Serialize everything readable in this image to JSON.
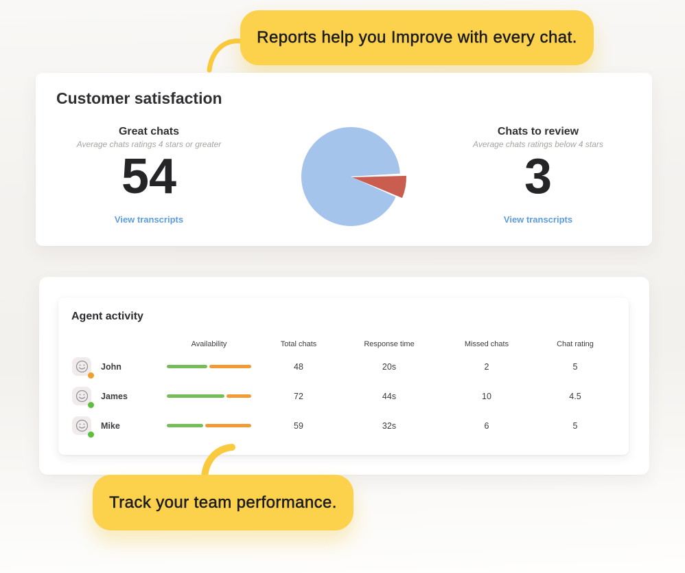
{
  "callouts": {
    "top": {
      "text": "Reports help you Improve with every chat."
    },
    "bottom": {
      "text": "Track your team performance."
    }
  },
  "customer_satisfaction": {
    "title": "Customer satisfaction",
    "left_stat": {
      "label": "Great chats",
      "subtitle": "Average chats ratings 4 stars or greater",
      "value": "54",
      "link": "View transcripts"
    },
    "right_stat": {
      "label": "Chats to review",
      "subtitle": "Average chats ratings below 4 stars",
      "value": "3",
      "link": "View transcripts"
    }
  },
  "chart_data": {
    "type": "pie",
    "title": "Customer satisfaction",
    "slices": [
      {
        "label": "Great chats",
        "value": 54,
        "color": "#a5c4ec"
      },
      {
        "label": "Chats to review",
        "value": 3,
        "color": "#c95d50",
        "exploded": true
      }
    ]
  },
  "agent_activity": {
    "title": "Agent activity",
    "columns": [
      "Availability",
      "Total chats",
      "Response time",
      "Missed chats",
      "Chat rating"
    ],
    "bar_colors": {
      "green": "#76bc58",
      "orange": "#f29a33"
    },
    "rows": [
      {
        "name": "John",
        "status": "away",
        "status_color": "#f09e2f",
        "availability_green_pct": 48,
        "availability_orange_pct": 52,
        "total_chats": "48",
        "response_time": "20s",
        "missed_chats": "2",
        "chat_rating": "5"
      },
      {
        "name": "James",
        "status": "online",
        "status_color": "#5dbe3f",
        "availability_green_pct": 68,
        "availability_orange_pct": 32,
        "total_chats": "72",
        "response_time": "44s",
        "missed_chats": "10",
        "chat_rating": "4.5"
      },
      {
        "name": "Mike",
        "status": "online",
        "status_color": "#5dbe3f",
        "availability_green_pct": 43,
        "availability_orange_pct": 57,
        "total_chats": "59",
        "response_time": "32s",
        "missed_chats": "6",
        "chat_rating": "5"
      }
    ]
  }
}
